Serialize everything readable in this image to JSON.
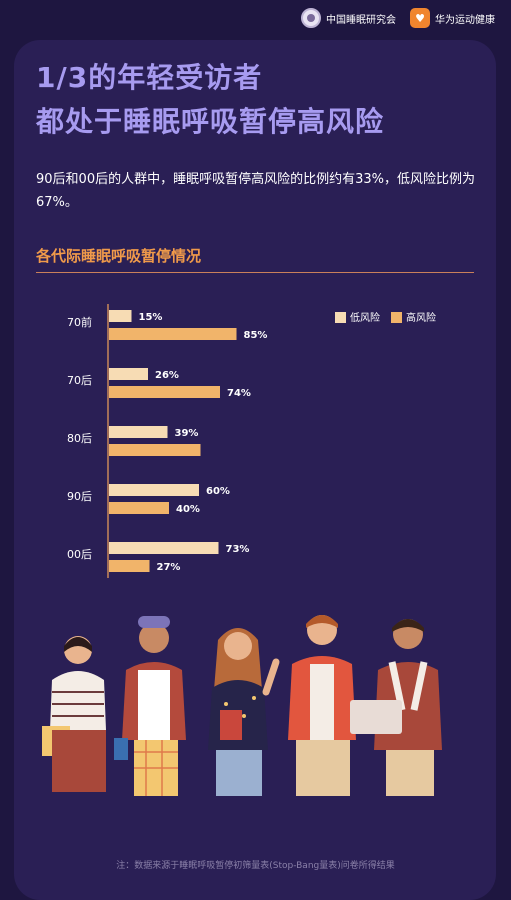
{
  "header": {
    "brand1": "中国睡眠研究会",
    "brand2": "华为运动健康"
  },
  "title_lines": [
    "1/3的年轻受访者",
    "都处于睡眠呼吸暂停高风险"
  ],
  "description": "90后和00后的人群中，睡眠呼吸暂停高风险的比例约有33%，低风险比例为67%。",
  "section_title": "各代际睡眠呼吸暂停情况",
  "footnote": "注：数据来源于睡眠呼吸暂停初筛量表(Stop-Bang量表)问卷所得结果",
  "colors": {
    "low": "#f7dcb4",
    "high": "#f1b46a",
    "axis": "#f0a25a",
    "title": "#a79bf0",
    "accent": "#f09a4a"
  },
  "chart_data": {
    "type": "bar",
    "orientation": "horizontal",
    "categories": [
      "70前",
      "70后",
      "80后",
      "90后",
      "00后"
    ],
    "series": [
      {
        "name": "低风险",
        "values": [
          15,
          26,
          39,
          60,
          73
        ]
      },
      {
        "name": "高风险",
        "values": [
          85,
          74,
          61,
          40,
          27
        ]
      }
    ],
    "value_labels": {
      "低风险": [
        "15%",
        "26%",
        "39%",
        "60%",
        "73%"
      ],
      "高风险": [
        "85%",
        "74%",
        "",
        "40%",
        "27%"
      ]
    },
    "xlim": [
      0,
      100
    ],
    "legend": "top-right",
    "grid": false
  }
}
